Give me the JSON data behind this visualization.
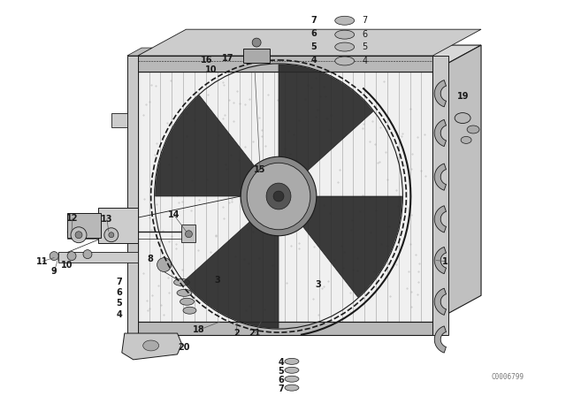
{
  "background_color": "#ffffff",
  "fig_width": 6.4,
  "fig_height": 4.48,
  "dpi": 100,
  "watermark": "C0006799",
  "line_color": "#1a1a1a",
  "label_fontsize": 7.0,
  "watermark_fontsize": 5.5
}
